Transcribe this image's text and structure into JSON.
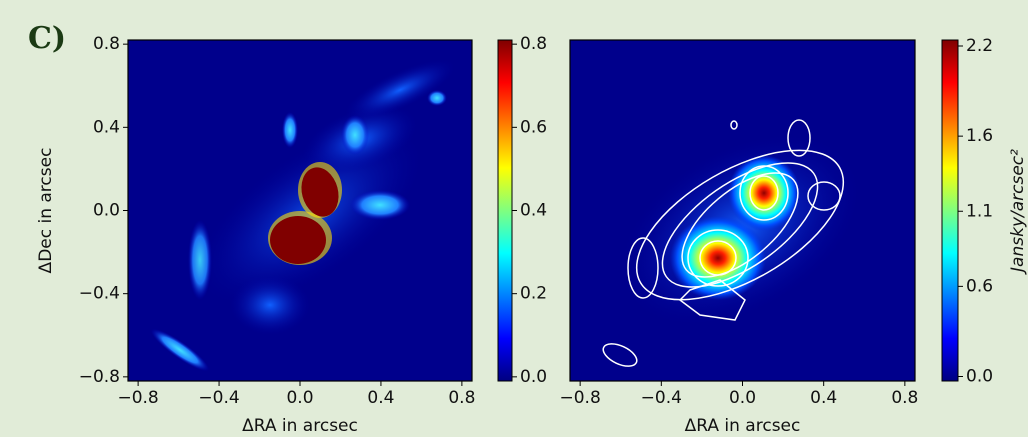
{
  "panel_label": "C)",
  "chart_data": [
    {
      "type": "heatmap",
      "colormap": "jet",
      "xlabel": "ΔRA in arcsec",
      "ylabel": "ΔDec in arcsec",
      "xlim": [
        -0.85,
        0.85
      ],
      "ylim": [
        -0.82,
        0.82
      ],
      "xticks": [
        {
          "value": -0.8,
          "label": "−0.8"
        },
        {
          "value": -0.4,
          "label": "−0.4"
        },
        {
          "value": 0,
          "label": "0.0"
        },
        0.4,
        0.8
      ],
      "yticks": [
        {
          "value": -0.8,
          "label": "−0.8"
        },
        {
          "value": -0.4,
          "label": "−0.4"
        },
        {
          "value": 0,
          "label": "0.0"
        },
        0.4,
        0.8
      ],
      "clim": [
        -0.01,
        0.81
      ],
      "cticks": [
        {
          "value": 0,
          "label": "0.0"
        },
        0.2,
        0.4,
        0.6,
        0.8
      ]
    },
    {
      "type": "heatmap",
      "colormap": "jet",
      "xlabel": "ΔRA in arcsec",
      "xlim": [
        -0.85,
        0.85
      ],
      "ylim": [
        -0.82,
        0.82
      ],
      "xticks": [
        {
          "value": -0.8,
          "label": "−0.8"
        },
        {
          "value": -0.4,
          "label": "−0.4"
        },
        {
          "value": 0,
          "label": "0.0"
        },
        0.4,
        0.8
      ],
      "clim": [
        -0.03,
        2.24
      ],
      "cticks": [
        {
          "value": 0,
          "label": "0.0"
        },
        0.6,
        1.1,
        1.6,
        2.2
      ],
      "colorbar_label": "Jansky/arcsec²"
    }
  ]
}
